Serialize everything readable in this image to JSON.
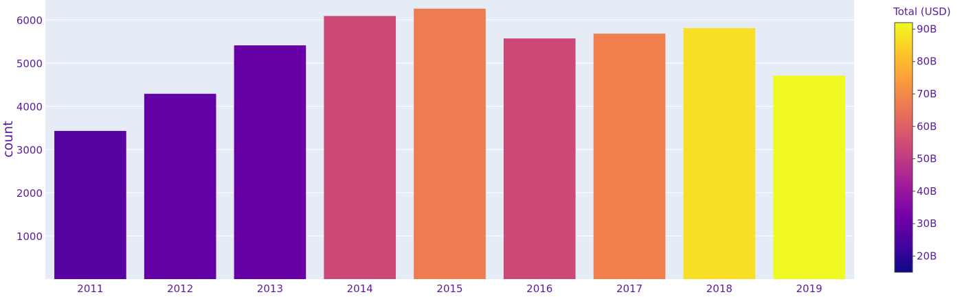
{
  "chart_data": {
    "type": "bar",
    "categories": [
      "2011",
      "2012",
      "2013",
      "2014",
      "2015",
      "2016",
      "2017",
      "2018",
      "2019"
    ],
    "values": [
      3430,
      4290,
      5410,
      6090,
      6260,
      5570,
      5680,
      5810,
      4710
    ],
    "color_values_billion_usd": [
      27,
      29,
      30,
      54,
      67,
      54,
      68,
      87,
      92
    ],
    "xlabel": "",
    "ylabel": "count",
    "ylim": [
      0,
      6460
    ],
    "y_ticks": [
      1000,
      2000,
      3000,
      4000,
      5000,
      6000
    ],
    "y_tick_labels": [
      "1000",
      "2000",
      "3000",
      "4000",
      "5000",
      "6000"
    ],
    "grid": true,
    "colorbar": {
      "title": "Total (USD)",
      "range": [
        15,
        92
      ],
      "ticks": [
        20,
        30,
        40,
        50,
        60,
        70,
        80,
        90
      ],
      "tick_labels": [
        "20B",
        "30B",
        "40B",
        "50B",
        "60B",
        "70B",
        "80B",
        "90B"
      ],
      "colorscale": [
        "#0d0887",
        "#46039f",
        "#7201a8",
        "#9c179e",
        "#bd3786",
        "#d8576b",
        "#ed7953",
        "#fb9f3a",
        "#fdca26",
        "#f0f921"
      ]
    },
    "colors": {
      "plot_bg": "#e5ecf6",
      "grid": "#ffffff",
      "text": "#5a1a9e"
    }
  }
}
